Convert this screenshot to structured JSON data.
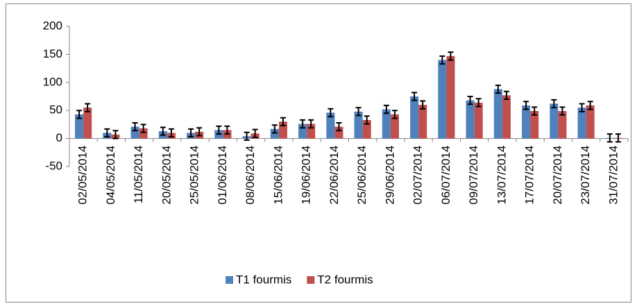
{
  "chart_data": {
    "type": "bar",
    "categories": [
      "02/05/2014",
      "04/05/2014",
      "11/05/2014",
      "20/05/2014",
      "25/05/2014",
      "01/06/2014",
      "08/06/2014",
      "15/06/2014",
      "19/06/2014",
      "22/06/2014",
      "25/06/2014",
      "29/06/2014",
      "02/07/2014",
      "06/07/2014",
      "09/07/2014",
      "13/07/2014",
      "17/07/2014",
      "20/07/2014",
      "23/07/2014",
      "31/07/2014"
    ],
    "series": [
      {
        "name": "T1 fourmis",
        "color": "#4f81bd",
        "values": [
          43,
          10,
          21,
          13,
          10,
          15,
          4,
          17,
          26,
          46,
          48,
          52,
          75,
          140,
          68,
          88,
          59,
          62,
          55,
          1
        ],
        "errors": [
          7,
          7,
          7,
          7,
          7,
          7,
          7,
          7,
          7,
          7,
          7,
          7,
          7,
          7,
          7,
          7,
          7,
          7,
          7,
          7
        ]
      },
      {
        "name": "T2 fourmis",
        "color": "#c0504d",
        "values": [
          55,
          7,
          18,
          10,
          12,
          15,
          9,
          30,
          26,
          21,
          33,
          43,
          60,
          147,
          64,
          77,
          49,
          49,
          59,
          1
        ],
        "errors": [
          7,
          7,
          7,
          7,
          7,
          7,
          7,
          7,
          7,
          7,
          7,
          7,
          7,
          7,
          7,
          7,
          7,
          7,
          7,
          7
        ]
      }
    ],
    "ylim": [
      -50,
      200
    ],
    "yticks": [
      -50,
      0,
      50,
      100,
      150,
      200
    ],
    "legend": "bottom"
  }
}
